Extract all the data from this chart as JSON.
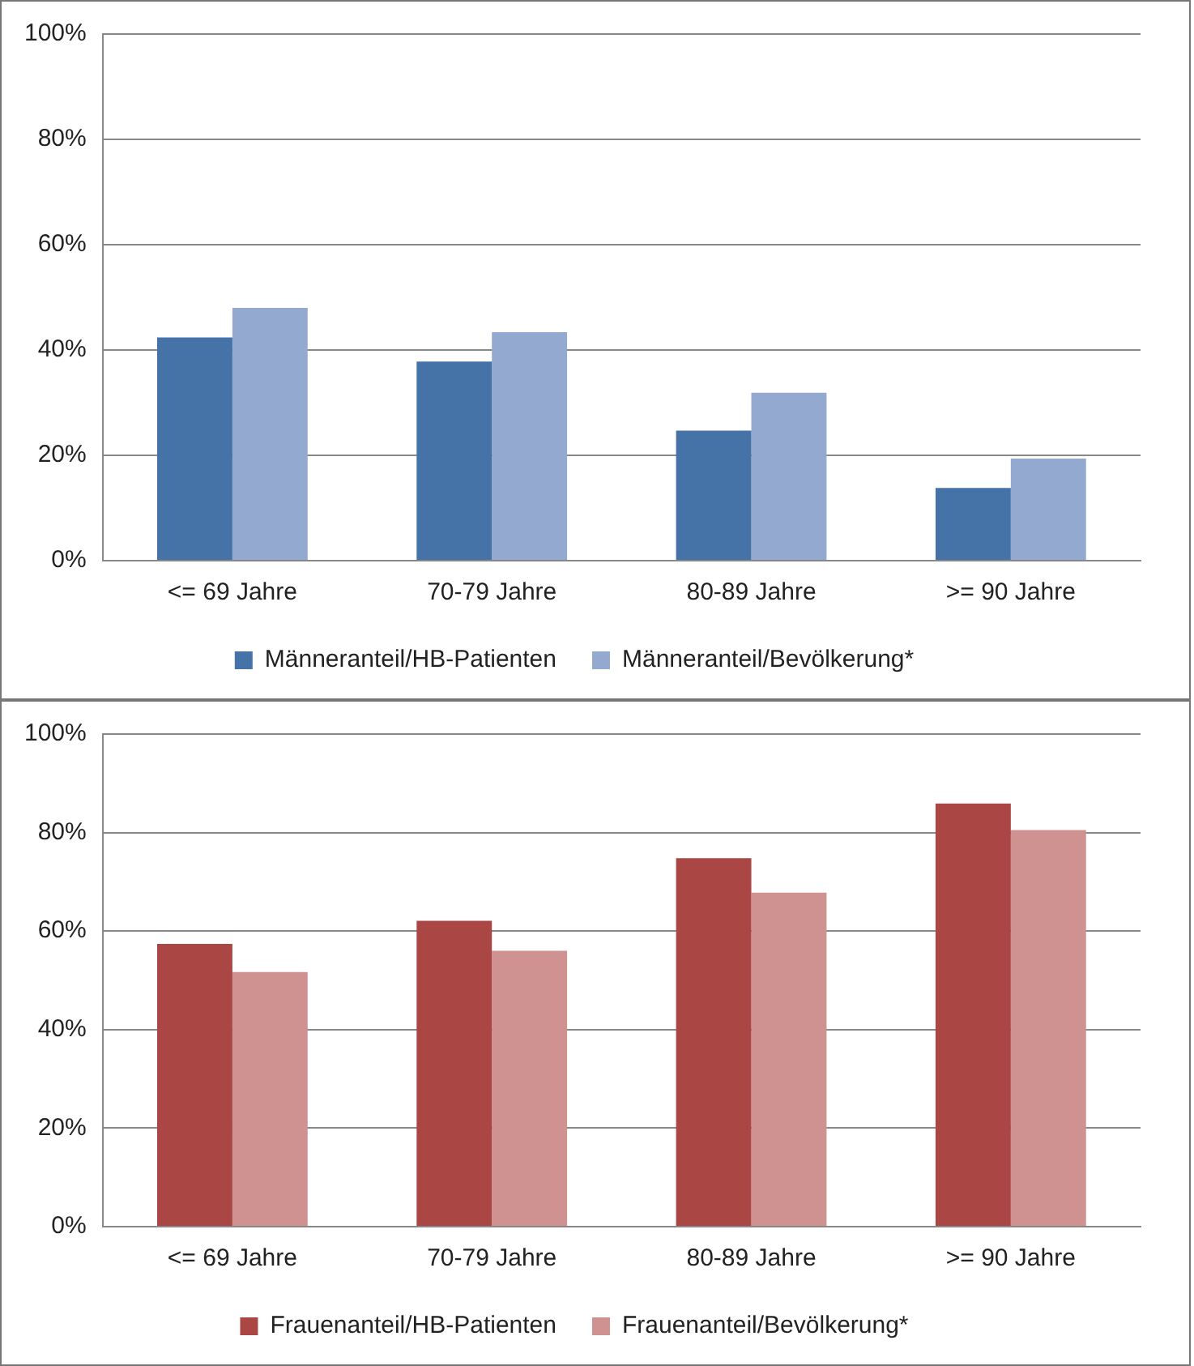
{
  "chart_data": [
    {
      "type": "bar",
      "categories": [
        "<= 69 Jahre",
        "70-79 Jahre",
        "80-89 Jahre",
        ">= 90 Jahre"
      ],
      "series": [
        {
          "name": "Männeranteil/HB-Patienten",
          "color": "#4572a7",
          "values": [
            42.4,
            37.8,
            24.7,
            13.8
          ]
        },
        {
          "name": "Männeranteil/Bevölkerung*",
          "color": "#93a9cf",
          "values": [
            48,
            43.4,
            31.9,
            19.4
          ]
        }
      ],
      "ylim": [
        0,
        100
      ],
      "yticks": [
        {
          "value": 0,
          "label": "0%"
        },
        {
          "value": 20,
          "label": "20%"
        },
        {
          "value": 40,
          "label": "40%"
        },
        {
          "value": 60,
          "label": "60%"
        },
        {
          "value": 80,
          "label": "80%"
        },
        {
          "value": 100,
          "label": "100%"
        }
      ],
      "grid": "y",
      "legend": "bottom"
    },
    {
      "type": "bar",
      "categories": [
        "<= 69 Jahre",
        "70-79 Jahre",
        "80-89 Jahre",
        ">= 90 Jahre"
      ],
      "series": [
        {
          "name": "Frauenanteil/HB-Patienten",
          "color": "#aa4643",
          "values": [
            57.4,
            62.1,
            74.8,
            85.9
          ]
        },
        {
          "name": "Frauenanteil/Bevölkerung*",
          "color": "#d09291",
          "values": [
            51.7,
            56,
            67.8,
            80.5
          ]
        }
      ],
      "ylim": [
        0,
        100
      ],
      "yticks": [
        {
          "value": 0,
          "label": "0%"
        },
        {
          "value": 20,
          "label": "20%"
        },
        {
          "value": 40,
          "label": "40%"
        },
        {
          "value": 60,
          "label": "60%"
        },
        {
          "value": 80,
          "label": "80%"
        },
        {
          "value": 100,
          "label": "100%"
        }
      ],
      "grid": "y",
      "legend": "bottom"
    }
  ]
}
